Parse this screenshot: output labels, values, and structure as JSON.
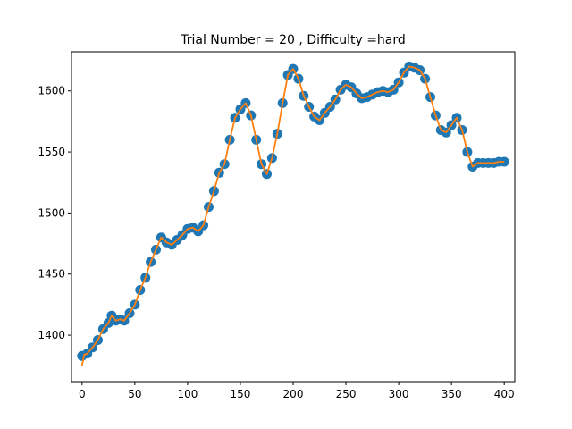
{
  "chart_data": {
    "type": "scatter",
    "title": "Trial Number = 20  , Difficulty =hard",
    "xlabel": "",
    "ylabel": "",
    "xlim": [
      -10,
      410
    ],
    "ylim": [
      1362,
      1632
    ],
    "xticks": [
      0,
      50,
      100,
      150,
      200,
      250,
      300,
      350,
      400
    ],
    "yticks": [
      1400,
      1450,
      1500,
      1550,
      1600
    ],
    "grid": false,
    "colors": {
      "scatter": "#1f77b4",
      "line": "#ff7f0e"
    },
    "series": [
      {
        "kind": "scatter",
        "x": [
          0,
          5,
          10,
          15,
          20,
          25,
          28,
          32,
          36,
          40,
          45,
          50,
          55,
          60,
          65,
          70,
          75,
          80,
          85,
          90,
          95,
          100,
          105,
          110,
          115,
          120,
          125,
          130,
          135,
          140,
          145,
          150,
          155,
          160,
          165,
          170,
          175,
          180,
          185,
          190,
          195,
          200,
          205,
          210,
          215,
          220,
          225,
          230,
          235,
          240,
          245,
          250,
          255,
          260,
          265,
          270,
          275,
          280,
          285,
          290,
          295,
          300,
          305,
          310,
          315,
          320,
          325,
          330,
          335,
          340,
          345,
          350,
          355,
          360,
          365,
          370,
          375,
          380,
          385,
          390,
          395,
          400
        ],
        "y": [
          1383,
          1385,
          1390,
          1396,
          1405,
          1410,
          1416,
          1412,
          1413,
          1412,
          1418,
          1425,
          1437,
          1447,
          1460,
          1470,
          1480,
          1476,
          1474,
          1478,
          1482,
          1487,
          1488,
          1485,
          1490,
          1505,
          1518,
          1533,
          1540,
          1560,
          1578,
          1585,
          1590,
          1580,
          1560,
          1540,
          1532,
          1545,
          1565,
          1590,
          1613,
          1618,
          1610,
          1596,
          1587,
          1579,
          1576,
          1582,
          1587,
          1593,
          1601,
          1605,
          1603,
          1598,
          1594,
          1595,
          1597,
          1599,
          1600,
          1599,
          1601,
          1607,
          1615,
          1620,
          1619,
          1617,
          1610,
          1595,
          1580,
          1568,
          1566,
          1572,
          1578,
          1568,
          1550,
          1538,
          1541,
          1541,
          1541,
          1541,
          1542,
          1542
        ]
      },
      {
        "kind": "line",
        "x": [
          0,
          2,
          5,
          10,
          15,
          20,
          25,
          28,
          32,
          36,
          40,
          45,
          50,
          55,
          60,
          65,
          70,
          75,
          80,
          85,
          90,
          95,
          100,
          105,
          110,
          115,
          120,
          125,
          130,
          135,
          140,
          145,
          150,
          155,
          160,
          165,
          170,
          175,
          180,
          185,
          190,
          195,
          200,
          205,
          210,
          215,
          220,
          225,
          230,
          235,
          240,
          245,
          250,
          255,
          260,
          265,
          270,
          275,
          280,
          285,
          290,
          295,
          300,
          305,
          310,
          315,
          320,
          325,
          330,
          335,
          340,
          345,
          350,
          355,
          360,
          365,
          370,
          375,
          380,
          385,
          390,
          395,
          400
        ],
        "y": [
          1375,
          1384,
          1385,
          1390,
          1396,
          1405,
          1410,
          1416,
          1412,
          1413,
          1412,
          1418,
          1425,
          1437,
          1447,
          1460,
          1470,
          1480,
          1476,
          1474,
          1478,
          1482,
          1487,
          1488,
          1485,
          1490,
          1505,
          1518,
          1533,
          1540,
          1560,
          1578,
          1585,
          1590,
          1580,
          1560,
          1540,
          1532,
          1545,
          1565,
          1590,
          1613,
          1618,
          1610,
          1596,
          1587,
          1579,
          1576,
          1582,
          1587,
          1593,
          1601,
          1605,
          1603,
          1598,
          1594,
          1595,
          1597,
          1599,
          1600,
          1599,
          1601,
          1607,
          1615,
          1620,
          1619,
          1617,
          1610,
          1595,
          1580,
          1568,
          1566,
          1572,
          1578,
          1568,
          1550,
          1538,
          1541,
          1541,
          1541,
          1541,
          1542,
          1542
        ]
      }
    ]
  }
}
